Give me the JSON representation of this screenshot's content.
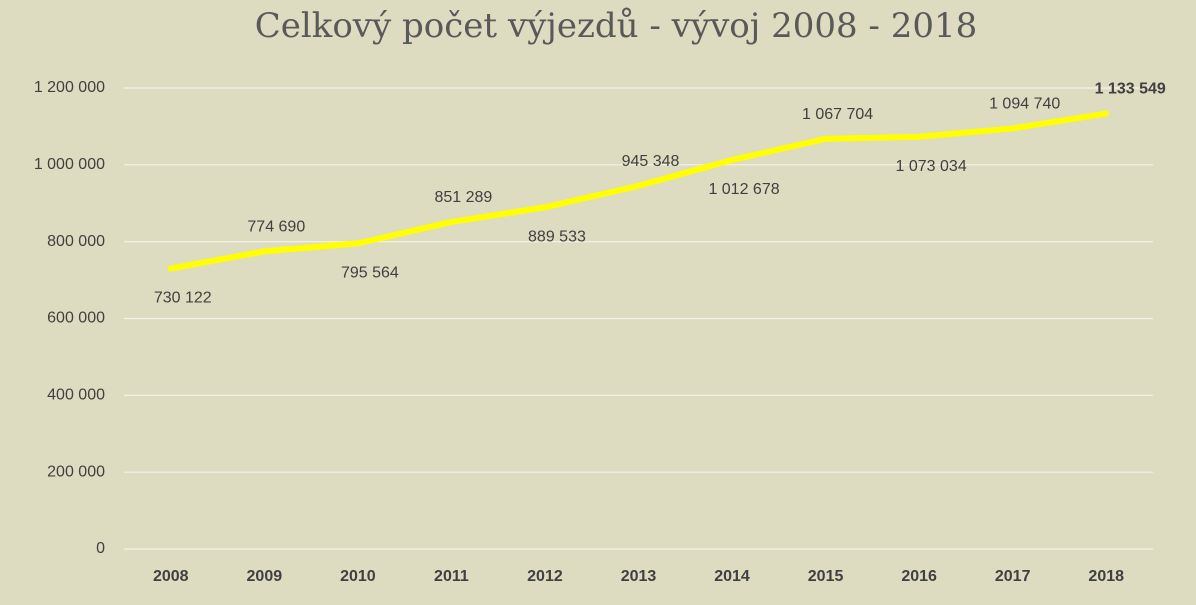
{
  "chart_data": {
    "type": "line",
    "title": "Celkový počet výjezdů - vývoj 2008 - 2018",
    "categories": [
      "2008",
      "2009",
      "2010",
      "2011",
      "2012",
      "2013",
      "2014",
      "2015",
      "2016",
      "2017",
      "2018"
    ],
    "series": [
      {
        "color": "#ffff00",
        "values": [
          730122,
          774690,
          795564,
          851289,
          889533,
          945348,
          1012678,
          1067704,
          1073034,
          1094740,
          1133549
        ],
        "value_labels": [
          "730 122",
          "774 690",
          "795 564",
          "851 289",
          "889 533",
          "945 348",
          "1 012 678",
          "1 067 704",
          "1 073 034",
          "1 094 740",
          "1 133 549"
        ]
      }
    ],
    "ylim": [
      0,
      1200000
    ],
    "yticks": [
      0,
      {
        "value": 200000,
        "label": "200 000"
      },
      {
        "value": 400000,
        "label": "400 000"
      },
      {
        "value": 600000,
        "label": "600 000"
      },
      {
        "value": 800000,
        "label": "800 000"
      },
      {
        "value": 1000000,
        "label": "1 000 000"
      },
      {
        "value": 1200000,
        "label": "1 200 000"
      }
    ],
    "grid": true
  }
}
